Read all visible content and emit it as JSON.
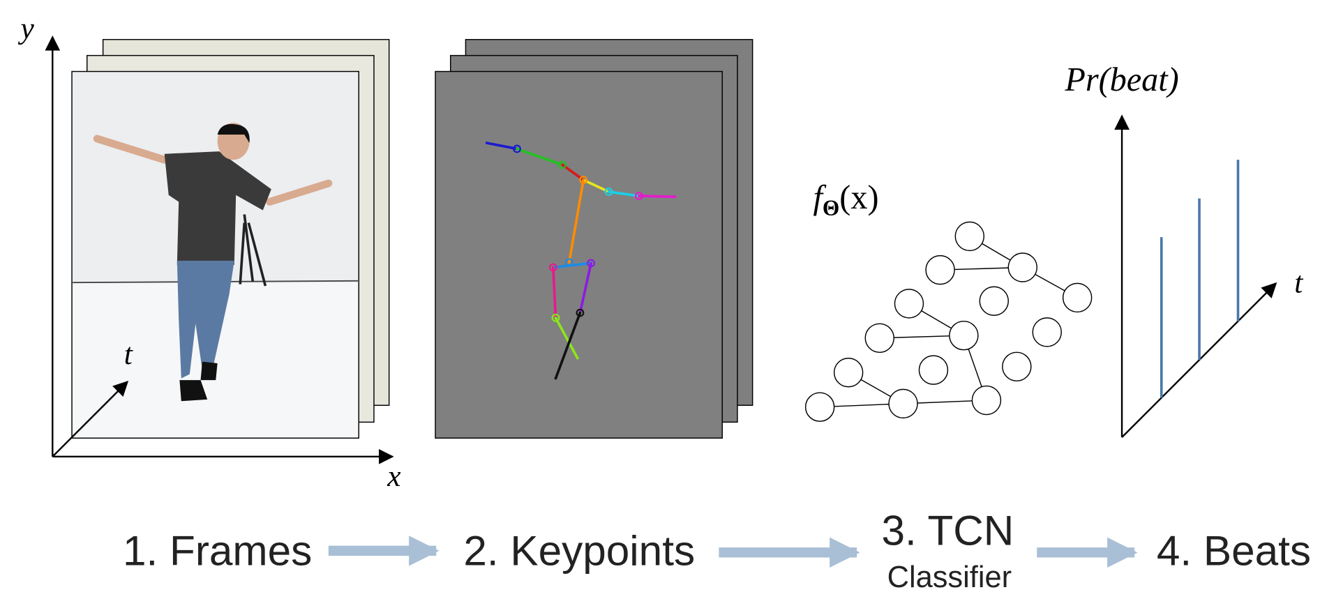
{
  "frames_panel": {
    "y_axis": "y",
    "x_axis": "x",
    "t_axis": "t"
  },
  "network_label": {
    "function": "f",
    "subscript": "Θ",
    "argument": "(x)"
  },
  "beats_panel": {
    "y_axis": "Pr(beat)",
    "t_axis": "t"
  },
  "steps": [
    {
      "label": "1. Frames"
    },
    {
      "label": "2. Keypoints"
    },
    {
      "label": "3. TCN",
      "sublabel": "Classifier"
    },
    {
      "label": "4. Beats"
    }
  ]
}
